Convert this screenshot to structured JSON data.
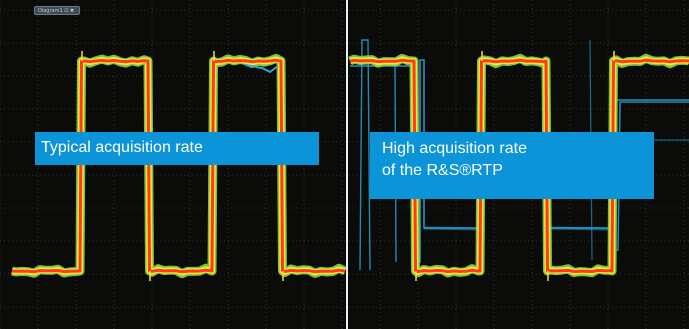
{
  "tab": {
    "label": "Diagram1 ⊡ ✖"
  },
  "labels": {
    "left": "Typical acquisition rate",
    "right_line1": "High acquisition rate",
    "right_line2": "of the R&S®RTP"
  },
  "colors": {
    "background": "#0b0c0a",
    "grid": "#2c3227",
    "divider": "#e9eef2",
    "label_box": "#0b94d8",
    "persistence_red": "#ff3a1e",
    "persistence_yellow": "#f2e53a",
    "persistence_green": "#7ed84a",
    "glitch_trace": "#2aa8e0"
  },
  "chart_data": {
    "type": "line",
    "panels": [
      {
        "name": "typical",
        "period_divisions": 4.3,
        "high_level": 3.0,
        "low_level": -3.0
      },
      {
        "name": "high",
        "period_divisions": 4.3,
        "high_level": 3.0,
        "low_level": -3.0
      }
    ]
  }
}
